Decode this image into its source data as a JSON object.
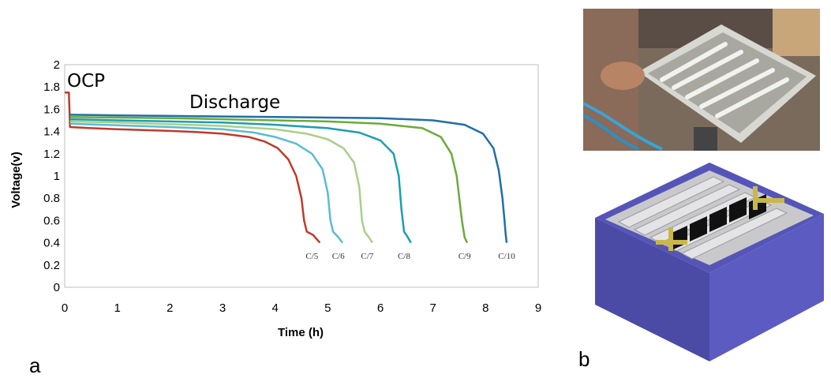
{
  "chart_data": {
    "type": "line",
    "xlabel": "Time (h)",
    "ylabel": "Voltage(v)",
    "xlim": [
      0,
      9
    ],
    "ylim": [
      0,
      2
    ],
    "xticks": [
      "0",
      "1",
      "2",
      "3",
      "4",
      "5",
      "6",
      "7",
      "8",
      "9"
    ],
    "yticks": [
      "0",
      "0.2",
      "0.4",
      "0.6",
      "0.8",
      "1",
      "1.2",
      "1.4",
      "1.6",
      "1.8",
      "2"
    ],
    "grid": false,
    "annotations": [
      "OCP",
      "Discharge"
    ],
    "series": [
      {
        "name": "C/5",
        "color": "#c0392b",
        "label_x": 4.7,
        "points": [
          [
            0,
            1.75
          ],
          [
            0.08,
            1.75
          ],
          [
            0.1,
            1.44
          ],
          [
            0.5,
            1.43
          ],
          [
            1,
            1.42
          ],
          [
            2,
            1.405
          ],
          [
            2.5,
            1.395
          ],
          [
            3,
            1.38
          ],
          [
            3.5,
            1.35
          ],
          [
            3.8,
            1.31
          ],
          [
            4.05,
            1.25
          ],
          [
            4.25,
            1.15
          ],
          [
            4.4,
            1.0
          ],
          [
            4.5,
            0.8
          ],
          [
            4.55,
            0.6
          ],
          [
            4.6,
            0.5
          ],
          [
            4.72,
            0.47
          ],
          [
            4.85,
            0.4
          ]
        ]
      },
      {
        "name": "C/6",
        "color": "#5bbbd6",
        "label_x": 5.2,
        "points": [
          [
            0.1,
            1.47
          ],
          [
            1,
            1.455
          ],
          [
            2,
            1.44
          ],
          [
            3,
            1.42
          ],
          [
            3.6,
            1.39
          ],
          [
            4.0,
            1.35
          ],
          [
            4.4,
            1.29
          ],
          [
            4.7,
            1.2
          ],
          [
            4.9,
            1.06
          ],
          [
            5.0,
            0.85
          ],
          [
            5.05,
            0.6
          ],
          [
            5.1,
            0.5
          ],
          [
            5.2,
            0.45
          ],
          [
            5.28,
            0.4
          ]
        ]
      },
      {
        "name": "C/7",
        "color": "#a9cf8a",
        "label_x": 5.75,
        "points": [
          [
            0.1,
            1.49
          ],
          [
            1,
            1.48
          ],
          [
            2,
            1.465
          ],
          [
            3,
            1.45
          ],
          [
            4,
            1.42
          ],
          [
            4.6,
            1.38
          ],
          [
            5.0,
            1.33
          ],
          [
            5.3,
            1.25
          ],
          [
            5.5,
            1.12
          ],
          [
            5.6,
            0.9
          ],
          [
            5.65,
            0.6
          ],
          [
            5.7,
            0.5
          ],
          [
            5.78,
            0.45
          ],
          [
            5.85,
            0.4
          ]
        ]
      },
      {
        "name": "C/8",
        "color": "#1b9eb2",
        "label_x": 6.45,
        "points": [
          [
            0.1,
            1.51
          ],
          [
            1,
            1.5
          ],
          [
            2,
            1.49
          ],
          [
            3,
            1.48
          ],
          [
            4,
            1.46
          ],
          [
            5,
            1.43
          ],
          [
            5.6,
            1.39
          ],
          [
            6.0,
            1.32
          ],
          [
            6.25,
            1.2
          ],
          [
            6.35,
            1.0
          ],
          [
            6.4,
            0.7
          ],
          [
            6.45,
            0.5
          ],
          [
            6.52,
            0.45
          ],
          [
            6.58,
            0.4
          ]
        ]
      },
      {
        "name": "C/9",
        "color": "#6aaa3a",
        "label_x": 7.6,
        "points": [
          [
            0.1,
            1.53
          ],
          [
            1,
            1.525
          ],
          [
            2,
            1.52
          ],
          [
            3,
            1.51
          ],
          [
            4,
            1.5
          ],
          [
            5,
            1.49
          ],
          [
            6,
            1.47
          ],
          [
            6.8,
            1.43
          ],
          [
            7.15,
            1.35
          ],
          [
            7.35,
            1.2
          ],
          [
            7.45,
            1.0
          ],
          [
            7.55,
            0.6
          ],
          [
            7.6,
            0.45
          ],
          [
            7.65,
            0.4
          ]
        ]
      },
      {
        "name": "C/10",
        "color": "#1f6fa8",
        "label_x": 8.4,
        "points": [
          [
            0.1,
            1.55
          ],
          [
            1,
            1.545
          ],
          [
            2,
            1.54
          ],
          [
            3,
            1.535
          ],
          [
            4,
            1.53
          ],
          [
            5,
            1.525
          ],
          [
            6,
            1.52
          ],
          [
            7,
            1.5
          ],
          [
            7.6,
            1.46
          ],
          [
            7.95,
            1.38
          ],
          [
            8.15,
            1.25
          ],
          [
            8.25,
            1.05
          ],
          [
            8.32,
            0.8
          ],
          [
            8.36,
            0.6
          ],
          [
            8.38,
            0.48
          ],
          [
            8.4,
            0.4
          ]
        ]
      }
    ]
  },
  "panels": {
    "a_label": "a",
    "b_label": "b"
  }
}
